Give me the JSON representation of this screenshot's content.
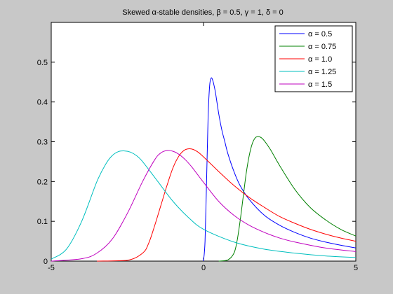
{
  "colors": {
    "figure_bg": "#c8c8c8",
    "axes_bg": "#ffffff",
    "axis": "#000000"
  },
  "chart_data": {
    "type": "line",
    "title": "Skewed α-stable densities, β = 0.5, γ = 1, δ = 0",
    "xlabel": "",
    "ylabel": "",
    "xlim": [
      -5,
      5
    ],
    "ylim": [
      0,
      0.6
    ],
    "x_ticks": [
      -5,
      0,
      5
    ],
    "y_ticks": [
      0,
      0.1,
      0.2,
      0.3,
      0.4,
      0.5
    ],
    "x_tick_labels": [
      "-5",
      "0",
      "5"
    ],
    "y_tick_labels": [
      "0",
      "0.1",
      "0.2",
      "0.3",
      "0.4",
      "0.5"
    ],
    "grid": false,
    "legend_position": "top-right",
    "series": [
      {
        "name": "α = 0.5",
        "color": "#0000ff",
        "x": [
          0.0,
          0.05,
          0.1,
          0.15,
          0.2,
          0.25,
          0.3,
          0.35,
          0.4,
          0.5,
          0.6,
          0.7,
          0.8,
          1.0,
          1.2,
          1.5,
          2.0,
          2.5,
          3.0,
          3.5,
          4.0,
          4.5,
          5.0
        ],
        "y": [
          0.0,
          0.05,
          0.2,
          0.36,
          0.44,
          0.46,
          0.455,
          0.44,
          0.42,
          0.37,
          0.33,
          0.3,
          0.27,
          0.225,
          0.19,
          0.155,
          0.115,
          0.09,
          0.072,
          0.058,
          0.048,
          0.04,
          0.033
        ]
      },
      {
        "name": "α = 0.75",
        "color": "#008000",
        "x": [
          0.5,
          0.8,
          1.0,
          1.1,
          1.2,
          1.3,
          1.4,
          1.5,
          1.6,
          1.7,
          1.8,
          1.9,
          2.0,
          2.2,
          2.5,
          3.0,
          3.5,
          4.0,
          4.5,
          5.0
        ],
        "y": [
          0.0,
          0.003,
          0.02,
          0.05,
          0.1,
          0.16,
          0.22,
          0.265,
          0.295,
          0.31,
          0.313,
          0.31,
          0.302,
          0.28,
          0.24,
          0.18,
          0.135,
          0.104,
          0.08,
          0.063
        ]
      },
      {
        "name": "α = 1.0",
        "color": "#ff0000",
        "x": [
          -3.5,
          -2.5,
          -2.0,
          -1.8,
          -1.6,
          -1.4,
          -1.2,
          -1.0,
          -0.8,
          -0.6,
          -0.4,
          -0.2,
          0.0,
          0.5,
          1.0,
          1.5,
          2.0,
          2.5,
          3.0,
          3.5,
          4.0,
          4.5,
          5.0
        ],
        "y": [
          0.0,
          0.002,
          0.02,
          0.045,
          0.09,
          0.14,
          0.19,
          0.235,
          0.265,
          0.28,
          0.282,
          0.275,
          0.262,
          0.225,
          0.19,
          0.16,
          0.135,
          0.112,
          0.095,
          0.08,
          0.068,
          0.058,
          0.05
        ]
      },
      {
        "name": "α = 1.25",
        "color": "#00bfbf",
        "x": [
          -5.0,
          -4.5,
          -4.0,
          -3.5,
          -3.2,
          -3.0,
          -2.8,
          -2.6,
          -2.4,
          -2.2,
          -2.0,
          -1.5,
          -1.0,
          -0.5,
          0.0,
          1.0,
          2.0,
          3.0,
          4.0,
          5.0
        ],
        "y": [
          0.005,
          0.03,
          0.1,
          0.2,
          0.245,
          0.265,
          0.275,
          0.277,
          0.274,
          0.265,
          0.25,
          0.2,
          0.15,
          0.11,
          0.08,
          0.048,
          0.03,
          0.02,
          0.013,
          0.009
        ]
      },
      {
        "name": "α = 1.5",
        "color": "#bf00bf",
        "x": [
          -5.0,
          -4.0,
          -3.5,
          -3.0,
          -2.5,
          -2.0,
          -1.6,
          -1.4,
          -1.2,
          -1.0,
          -0.8,
          -0.6,
          -0.4,
          -0.2,
          0.0,
          0.5,
          1.0,
          1.5,
          2.0,
          2.5,
          3.0,
          4.0,
          5.0
        ],
        "y": [
          0.0,
          0.006,
          0.02,
          0.055,
          0.12,
          0.2,
          0.255,
          0.272,
          0.278,
          0.276,
          0.268,
          0.255,
          0.238,
          0.218,
          0.198,
          0.15,
          0.115,
          0.09,
          0.072,
          0.058,
          0.048,
          0.033,
          0.024
        ]
      }
    ]
  }
}
